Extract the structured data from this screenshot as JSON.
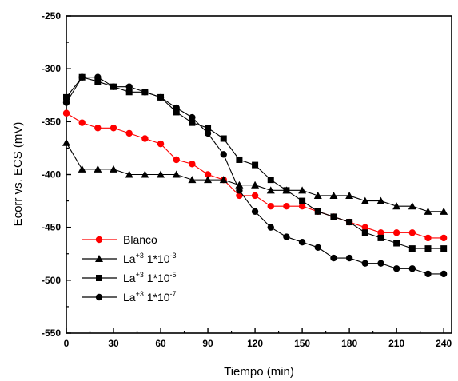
{
  "chart_data": {
    "type": "line",
    "xlabel": "Tiempo (min)",
    "ylabel": "Ecorr vs. ECS (mV)",
    "xlim": [
      0,
      245
    ],
    "ylim": [
      -550,
      -250
    ],
    "xticks": [
      0,
      30,
      60,
      90,
      120,
      150,
      180,
      210,
      240
    ],
    "yticks": [
      -550,
      -500,
      -450,
      -400,
      -350,
      -300,
      -250
    ],
    "legend_position": "bottom-left",
    "series": [
      {
        "name": "Blanco",
        "marker": "circle",
        "color": "#ff0000",
        "x": [
          0,
          10,
          20,
          30,
          40,
          50,
          60,
          70,
          80,
          90,
          100,
          110,
          120,
          130,
          140,
          150,
          160,
          170,
          180,
          190,
          200,
          210,
          220,
          230,
          240
        ],
        "y": [
          -342,
          -351,
          -356,
          -356,
          -361,
          -366,
          -371,
          -386,
          -390,
          -400,
          -405,
          -420,
          -420,
          -430,
          -430,
          -430,
          -435,
          -440,
          -445,
          -450,
          -455,
          -455,
          -455,
          -460,
          -460
        ]
      },
      {
        "name_main": "La",
        "name_sup": "+3",
        "name_mid": " 1*10",
        "name_exp": "-3",
        "marker": "triangle",
        "color": "#000000",
        "x": [
          0,
          10,
          20,
          30,
          40,
          50,
          60,
          70,
          80,
          90,
          100,
          110,
          120,
          130,
          140,
          150,
          160,
          170,
          180,
          190,
          200,
          210,
          220,
          230,
          240
        ],
        "y": [
          -370,
          -395,
          -395,
          -395,
          -400,
          -400,
          -400,
          -400,
          -405,
          -405,
          -405,
          -410,
          -410,
          -415,
          -415,
          -415,
          -420,
          -420,
          -420,
          -425,
          -425,
          -430,
          -430,
          -435,
          -435
        ]
      },
      {
        "name_main": "La",
        "name_sup": "+3",
        "name_mid": " 1*10",
        "name_exp": "-5",
        "marker": "square",
        "color": "#000000",
        "x": [
          0,
          10,
          20,
          30,
          40,
          50,
          60,
          70,
          80,
          90,
          100,
          110,
          120,
          130,
          140,
          150,
          160,
          170,
          180,
          190,
          200,
          210,
          220,
          230,
          240
        ],
        "y": [
          -327,
          -308,
          -312,
          -317,
          -322,
          -322,
          -327,
          -341,
          -351,
          -356,
          -366,
          -386,
          -391,
          -405,
          -415,
          -425,
          -435,
          -440,
          -445,
          -455,
          -460,
          -465,
          -470,
          -470,
          -470
        ]
      },
      {
        "name_main": "La",
        "name_sup": "+3",
        "name_mid": " 1*10",
        "name_exp": "-7",
        "marker": "circle",
        "color": "#000000",
        "x": [
          0,
          10,
          20,
          30,
          40,
          50,
          60,
          70,
          80,
          90,
          100,
          110,
          120,
          130,
          140,
          150,
          160,
          170,
          180,
          190,
          200,
          210,
          220,
          230,
          240
        ],
        "y": [
          -332,
          -308,
          -308,
          -317,
          -317,
          -322,
          -327,
          -337,
          -346,
          -361,
          -381,
          -415,
          -435,
          -450,
          -459,
          -464,
          -469,
          -479,
          -479,
          -484,
          -484,
          -489,
          -489,
          -494,
          -494
        ]
      }
    ]
  }
}
